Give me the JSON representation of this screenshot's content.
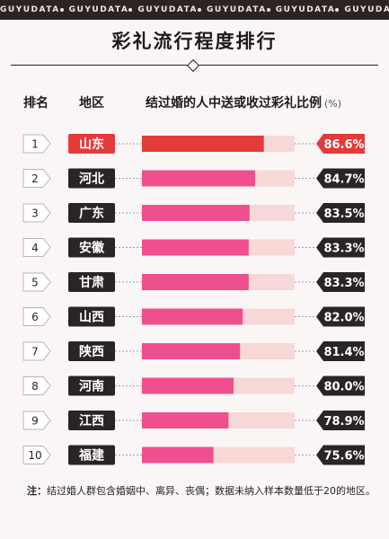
{
  "top_band": [
    "GUYUDATA",
    "GUYUDATA",
    "GUYUDATA",
    "GUYUDATA",
    "GUYUDATA",
    "GUYUDATA"
  ],
  "title": "彩礼流行程度排行",
  "headers": {
    "rank": "排名",
    "region": "地区",
    "metric": "结过婚的人中送或收过彩礼比例",
    "unit": "(%)"
  },
  "colors": {
    "highlight": "#e43a3a",
    "bar": "#ef4f8d",
    "track": "#f6d8d6",
    "dark": "#2b2424"
  },
  "chart_data": {
    "type": "bar",
    "orientation": "horizontal",
    "title": "彩礼流行程度排行",
    "xlabel": "结过婚的人中送或收过彩礼比例 (%)",
    "ranks": [
      "1",
      "2",
      "3",
      "4",
      "5",
      "6",
      "7",
      "8",
      "9",
      "10"
    ],
    "categories": [
      "山东",
      "河北",
      "广东",
      "安徽",
      "甘肃",
      "山西",
      "陕西",
      "河南",
      "江西",
      "福建"
    ],
    "values": [
      86.6,
      84.7,
      83.5,
      83.3,
      83.3,
      82.0,
      81.4,
      80.0,
      78.9,
      75.6
    ],
    "value_labels": [
      "86.6%",
      "84.7%",
      "83.5%",
      "83.3%",
      "83.3%",
      "82.0%",
      "81.4%",
      "80.0%",
      "78.9%",
      "75.6%"
    ],
    "xlim": [
      0,
      100
    ],
    "highlight_index": 0
  },
  "note": {
    "label": "注：",
    "text": "结过婚人群包含婚姻中、离异、丧偶；数据未纳入样本数量低于20的地区。"
  }
}
